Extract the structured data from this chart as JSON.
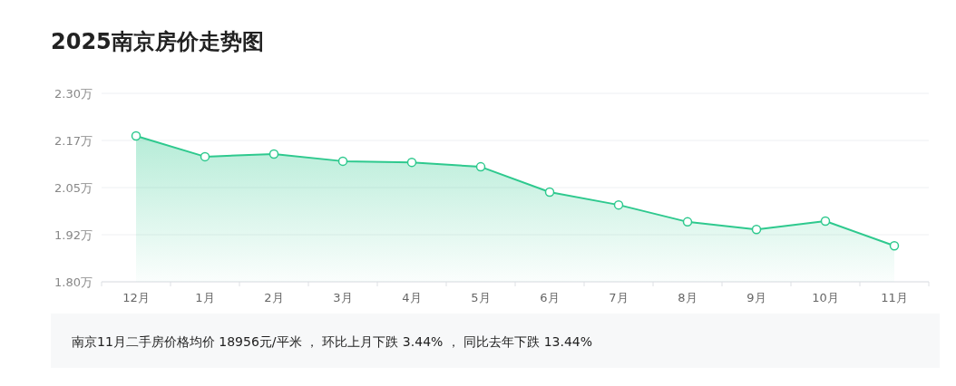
{
  "chart_data": {
    "type": "area",
    "title": "2025南京房价走势图",
    "categories": [
      "12月",
      "1月",
      "2月",
      "3月",
      "4月",
      "5月",
      "6月",
      "7月",
      "8月",
      "9月",
      "10月",
      "11月"
    ],
    "series": [
      {
        "color": "#2ec98e",
        "values": [
          2.187,
          2.132,
          2.139,
          2.12,
          2.117,
          2.105,
          2.038,
          2.004,
          1.959,
          1.939,
          1.961,
          1.8956
        ]
      }
    ],
    "ylim": [
      1.8,
      2.3
    ],
    "yticks": [
      {
        "value": 1.8,
        "label": "1.80万"
      },
      {
        "value": 1.925,
        "label": "1.92万"
      },
      {
        "value": 2.05,
        "label": "2.05万"
      },
      {
        "value": 2.175,
        "label": "2.17万"
      },
      {
        "value": 2.3,
        "label": "2.30万"
      }
    ],
    "grid": "y",
    "marker": "circle",
    "line_style": "solid",
    "annotations": [
      "南京11月二手房价格均价 18956元/平米 ， 环比上月下跌 3.44% ， 同比去年下跌 13.44%"
    ]
  }
}
